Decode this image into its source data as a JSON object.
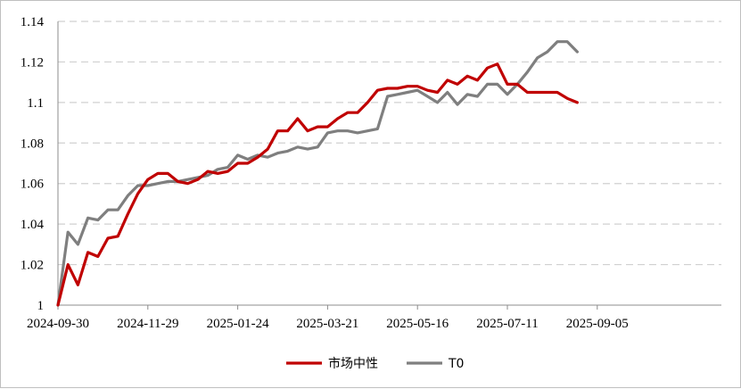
{
  "chart_data": {
    "type": "line",
    "xlabel": "",
    "ylabel": "",
    "ylim": [
      1,
      1.14
    ],
    "y_ticks": [
      "1",
      "1.02",
      "1.04",
      "1.06",
      "1.08",
      "1.1",
      "1.12",
      "1.14"
    ],
    "x_tick_labels": [
      "2024-09-30",
      "2024-11-29",
      "2025-01-24",
      "2025-03-21",
      "2025-05-16",
      "2025-07-11",
      "2025-09-05"
    ],
    "x_tick_index": [
      0,
      9,
      18,
      27,
      36,
      45,
      54
    ],
    "grid": "horizontal-dashed",
    "legend": "bottom-center",
    "series": [
      {
        "name": "市场中性",
        "color": "#c00000",
        "values": [
          1.0,
          1.02,
          1.01,
          1.026,
          1.024,
          1.033,
          1.034,
          1.045,
          1.055,
          1.062,
          1.065,
          1.065,
          1.061,
          1.06,
          1.062,
          1.066,
          1.065,
          1.066,
          1.07,
          1.07,
          1.073,
          1.077,
          1.086,
          1.086,
          1.092,
          1.086,
          1.088,
          1.088,
          1.092,
          1.095,
          1.095,
          1.1,
          1.106,
          1.107,
          1.107,
          1.108,
          1.108,
          1.106,
          1.105,
          1.111,
          1.109,
          1.113,
          1.111,
          1.117,
          1.119,
          1.109,
          1.109,
          1.105,
          1.105,
          1.105,
          1.105,
          1.102,
          1.1
        ]
      },
      {
        "name": "T0",
        "color": "#7f7f7f",
        "values": [
          1.0,
          1.036,
          1.03,
          1.043,
          1.042,
          1.047,
          1.047,
          1.054,
          1.059,
          1.059,
          1.06,
          1.061,
          1.061,
          1.062,
          1.063,
          1.064,
          1.067,
          1.068,
          1.074,
          1.072,
          1.074,
          1.073,
          1.075,
          1.076,
          1.078,
          1.077,
          1.078,
          1.085,
          1.086,
          1.086,
          1.085,
          1.086,
          1.087,
          1.103,
          1.104,
          1.105,
          1.106,
          1.103,
          1.1,
          1.105,
          1.099,
          1.104,
          1.103,
          1.109,
          1.109,
          1.104,
          1.109,
          1.115,
          1.122,
          1.125,
          1.13,
          1.13,
          1.125
        ]
      }
    ]
  }
}
